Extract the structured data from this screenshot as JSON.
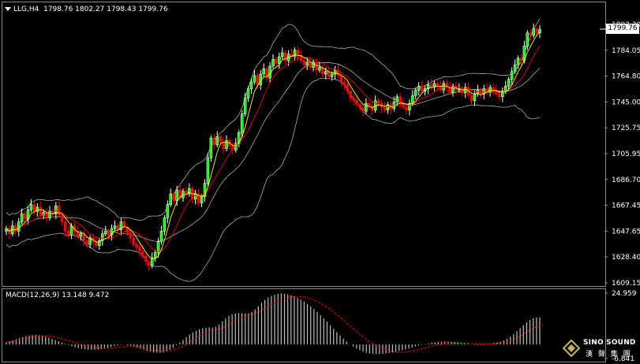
{
  "chart_header": {
    "symbol_tf": "LLG,H4",
    "ohlc": "1798.76 1802.27 1798.43 1799.76"
  },
  "current_price_label": "1799.76",
  "price_axis_labels": [
    "1803.30",
    "1784.05",
    "1764.80",
    "1745.00",
    "1725.75",
    "1705.95",
    "1686.70",
    "1667.45",
    "1647.65",
    "1628.40",
    "1609.15"
  ],
  "macd_header": "MACD(12,26,9) 13.148 9.472",
  "macd_axis_labels": [
    "24.959",
    "-6.841"
  ],
  "logo": {
    "name": "SINO SOUND",
    "cn": "漢 聲 集 團"
  },
  "colors": {
    "bull": "#ffffff",
    "bear": "#ff0000",
    "bull_fill": "#00ff00",
    "ma": "#ffff00",
    "envelope": "#c0c0c0",
    "macd_hist": "#c0c0c0",
    "macd_signal": "#ff0000"
  },
  "chart_data": [
    {
      "type": "candlestick",
      "title": "LLG,H4",
      "ylim": [
        1609.15,
        1803.3
      ],
      "series_close": [
        1650,
        1646,
        1652,
        1648,
        1655,
        1661,
        1657,
        1664,
        1668,
        1663,
        1666,
        1660,
        1662,
        1658,
        1663,
        1661,
        1667,
        1660,
        1655,
        1648,
        1645,
        1652,
        1648,
        1644,
        1646,
        1641,
        1638,
        1643,
        1640,
        1637,
        1641,
        1646,
        1648,
        1645,
        1650,
        1652,
        1649,
        1655,
        1651,
        1647,
        1643,
        1638,
        1636,
        1633,
        1629,
        1625,
        1622,
        1628,
        1632,
        1640,
        1648,
        1658,
        1668,
        1676,
        1671,
        1679,
        1673,
        1678,
        1676,
        1680,
        1672,
        1676,
        1669,
        1674,
        1684,
        1703,
        1718,
        1713,
        1719,
        1715,
        1710,
        1716,
        1712,
        1709,
        1714,
        1722,
        1736,
        1748,
        1755,
        1760,
        1765,
        1758,
        1766,
        1770,
        1763,
        1772,
        1777,
        1774,
        1779,
        1782,
        1776,
        1781,
        1779,
        1784,
        1780,
        1776,
        1773,
        1775,
        1771,
        1775,
        1769,
        1771,
        1766,
        1768,
        1764,
        1766,
        1769,
        1765,
        1760,
        1758,
        1753,
        1748,
        1746,
        1743,
        1741,
        1738,
        1744,
        1742,
        1739,
        1746,
        1744,
        1741,
        1739,
        1743,
        1740,
        1745,
        1749,
        1744,
        1741,
        1739,
        1744,
        1750,
        1754,
        1757,
        1753,
        1755,
        1758,
        1756,
        1759,
        1757,
        1754,
        1759,
        1756,
        1752,
        1757,
        1754,
        1755,
        1752,
        1756,
        1750,
        1746,
        1751,
        1754,
        1751,
        1755,
        1752,
        1756,
        1754,
        1751,
        1749,
        1753,
        1757,
        1762,
        1768,
        1773,
        1778,
        1776,
        1787,
        1797,
        1795,
        1800,
        1797,
        1799.76
      ]
    },
    {
      "type": "bar",
      "title": "MACD(12,26,9)",
      "ylim": [
        -6.841,
        24.959
      ],
      "values": [
        1,
        1.5,
        2,
        2.5,
        3,
        3.5,
        4,
        4.3,
        4.5,
        4.6,
        4.5,
        4.2,
        3.8,
        3.3,
        2.7,
        2.1,
        1.5,
        0.9,
        0.3,
        -0.3,
        -0.9,
        -1.4,
        -1.8,
        -2.1,
        -2.3,
        -2.5,
        -2.6,
        -2.6,
        -2.5,
        -2.3,
        -2,
        -1.6,
        -1.2,
        -0.8,
        -0.5,
        -0.2,
        -0.1,
        -0.3,
        -0.6,
        -1,
        -1.5,
        -2,
        -2.6,
        -3.1,
        -3.5,
        -3.8,
        -4,
        -4.1,
        -3.9,
        -3.4,
        -2.6,
        -1.6,
        -0.4,
        0.9,
        2.2,
        3.5,
        4.7,
        5.8,
        6.7,
        7.4,
        7.9,
        8.2,
        8.3,
        8.2,
        8.6,
        9.6,
        11.2,
        12.6,
        13.8,
        14.6,
        15.1,
        15.3,
        15.2,
        15,
        15.1,
        15.8,
        17,
        18.6,
        20.2,
        21.6,
        22.8,
        23.6,
        24.2,
        24.6,
        24.8,
        24.7,
        24.4,
        23.9,
        23.3,
        22.6,
        21.8,
        20.8,
        19.7,
        18.5,
        17.2,
        15.8,
        14.3,
        12.7,
        11,
        9.3,
        7.6,
        5.9,
        4.3,
        2.8,
        1.4,
        0.1,
        -1,
        -2,
        -2.8,
        -3.5,
        -4,
        -4.4,
        -4.6,
        -4.7,
        -4.7,
        -4.6,
        -4.4,
        -4.2,
        -3.9,
        -3.6,
        -3.2,
        -2.8,
        -2.4,
        -2,
        -1.5,
        -1,
        -0.6,
        -0.2,
        0.2,
        0.5,
        0.8,
        1,
        1.2,
        1.3,
        1.4,
        1.4,
        1.3,
        1.2,
        1,
        0.8,
        0.6,
        0.3,
        0,
        -0.2,
        -0.3,
        -0.3,
        -0.2,
        0,
        0.2,
        0.5,
        0.9,
        1.4,
        2,
        2.8,
        3.8,
        5,
        6.4,
        7.9,
        9.4,
        10.8,
        11.9,
        12.7,
        13.1,
        13.148
      ],
      "signal": [
        1,
        1.2,
        1.5,
        1.8,
        2.1,
        2.5,
        2.9,
        3.2,
        3.5,
        3.8,
        4,
        4.1,
        4.1,
        4,
        3.8,
        3.5,
        3.1,
        2.7,
        2.3,
        1.8,
        1.3,
        0.8,
        0.3,
        -0.1,
        -0.5,
        -0.9,
        -1.2,
        -1.5,
        -1.7,
        -1.8,
        -1.9,
        -1.8,
        -1.7,
        -1.6,
        -1.4,
        -1.2,
        -1.1,
        -1,
        -1,
        -1.1,
        -1.2,
        -1.4,
        -1.7,
        -2,
        -2.3,
        -2.6,
        -2.9,
        -3.1,
        -3.2,
        -3.2,
        -3.1,
        -2.8,
        -2.3,
        -1.7,
        -0.9,
        0,
        1,
        2,
        3,
        3.9,
        4.7,
        5.4,
        6,
        6.5,
        7,
        7.5,
        8.1,
        8.9,
        9.8,
        10.7,
        11.6,
        12.4,
        13.1,
        13.6,
        14.1,
        14.6,
        15.1,
        15.8,
        16.6,
        17.5,
        18.4,
        19.3,
        20.2,
        21,
        21.7,
        22.3,
        22.8,
        23.1,
        23.3,
        23.4,
        23.3,
        23.1,
        22.7,
        22.2,
        21.6,
        20.9,
        20,
        19.1,
        18.1,
        17,
        15.8,
        14.5,
        13.2,
        11.9,
        10.5,
        9.1,
        7.7,
        6.3,
        5,
        3.7,
        2.5,
        1.4,
        0.4,
        -0.5,
        -1.3,
        -2,
        -2.6,
        -3.1,
        -3.4,
        -3.7,
        -3.8,
        -3.8,
        -3.7,
        -3.5,
        -3.2,
        -2.9,
        -2.5,
        -2.1,
        -1.7,
        -1.3,
        -0.9,
        -0.5,
        -0.2,
        0.1,
        0.3,
        0.5,
        0.6,
        0.7,
        0.7,
        0.7,
        0.6,
        0.5,
        0.4,
        0.3,
        0.3,
        0.2,
        0.2,
        0.2,
        0.3,
        0.4,
        0.5,
        0.7,
        1,
        1.4,
        1.9,
        2.5,
        3.2,
        4,
        4.9,
        5.9,
        6.9,
        7.8,
        8.6,
        9.1,
        9.472
      ]
    }
  ]
}
